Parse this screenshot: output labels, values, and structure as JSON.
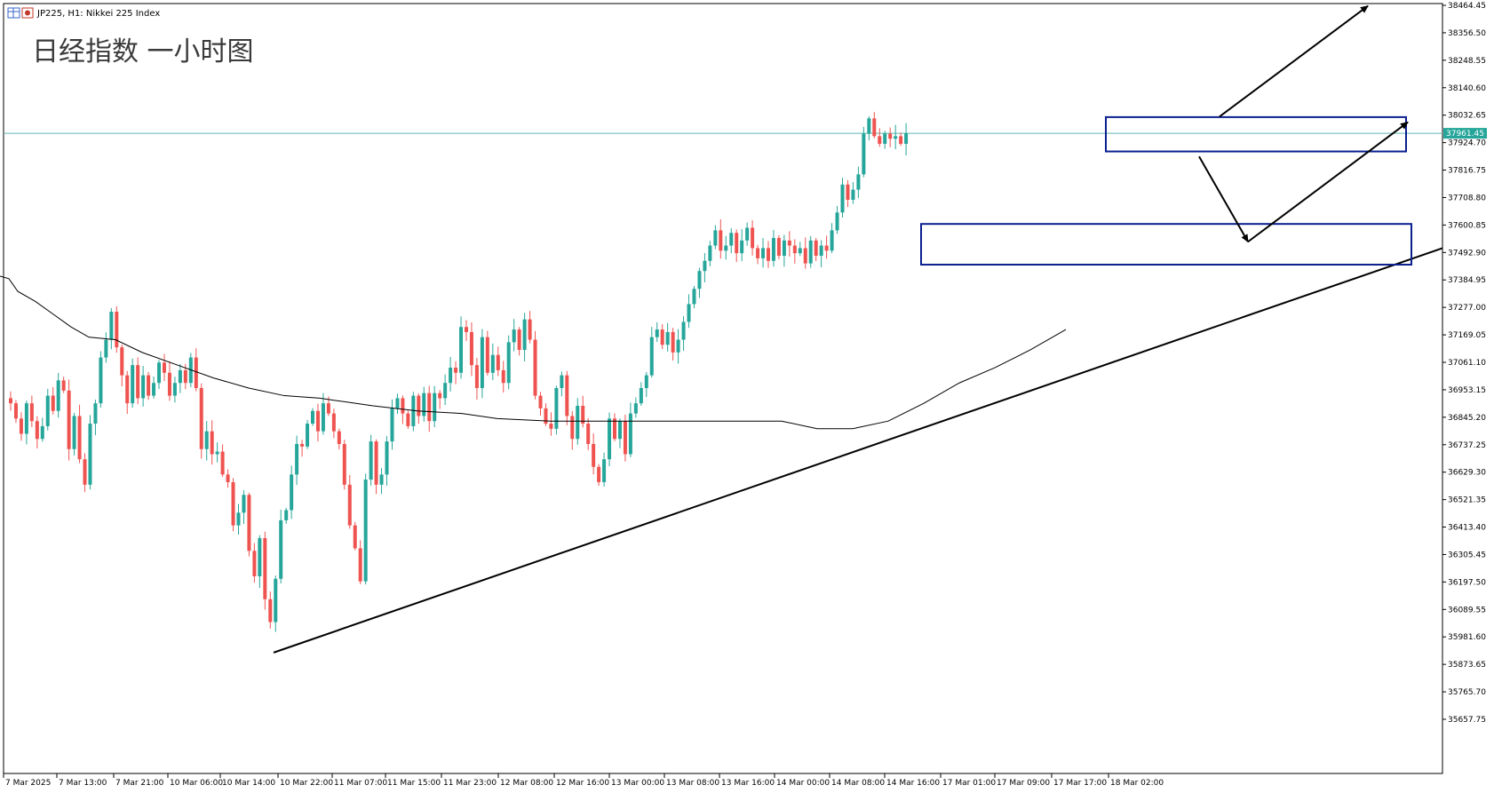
{
  "header": {
    "symbol_text": "JP225, H1:  Nikkei 225 Index"
  },
  "chart_data": {
    "type": "candlestick",
    "title": "日经指数 一小时图",
    "y_ticks": [
      "38464.45",
      "38356.50",
      "38248.55",
      "38140.60",
      "38032.65",
      "37924.70",
      "37816.75",
      "37708.80",
      "37600.85",
      "37492.90",
      "37384.95",
      "37277.00",
      "37169.05",
      "37061.10",
      "36953.15",
      "36845.20",
      "36737.25",
      "36629.30",
      "36521.35",
      "36413.40",
      "36305.45",
      "36197.50",
      "36089.55",
      "35981.60",
      "35873.65",
      "35765.70",
      "35657.75"
    ],
    "ylim": [
      35565,
      38470
    ],
    "x_ticks": [
      "7 Mar 2025",
      "7 Mar 13:00",
      "7 Mar 21:00",
      "10 Mar 06:00",
      "10 Mar 14:00",
      "10 Mar 22:00",
      "11 Mar 07:00",
      "11 Mar 15:00",
      "11 Mar 23:00",
      "12 Mar 08:00",
      "12 Mar 16:00",
      "13 Mar 00:00",
      "13 Mar 08:00",
      "13 Mar 16:00",
      "14 Mar 00:00",
      "14 Mar 08:00",
      "14 Mar 16:00",
      "17 Mar 01:00",
      "17 Mar 09:00",
      "17 Mar 17:00",
      "18 Mar 02:00"
    ],
    "current_price": "37961.45",
    "colors": {
      "up": "#26a69a",
      "down": "#ef5350",
      "ma": "#000000",
      "box": "#0a1f8f",
      "price_line": "#5fb8b0"
    },
    "closes": [
      36900,
      36840,
      36780,
      36900,
      36830,
      36760,
      36810,
      36930,
      36870,
      36990,
      36950,
      36720,
      36850,
      36680,
      36580,
      36820,
      36900,
      37080,
      37150,
      37260,
      37120,
      37010,
      36900,
      37050,
      36920,
      37010,
      36930,
      36980,
      37060,
      37020,
      36930,
      36980,
      37030,
      36980,
      37080,
      36960,
      36720,
      36790,
      36700,
      36710,
      36620,
      36590,
      36420,
      36470,
      36540,
      36320,
      36220,
      36370,
      36130,
      36040,
      36210,
      36440,
      36480,
      36620,
      36740,
      36730,
      36820,
      36870,
      36790,
      36900,
      36860,
      36790,
      36740,
      36580,
      36420,
      36330,
      36200,
      36600,
      36750,
      36580,
      36620,
      36750,
      36880,
      36920,
      36860,
      36810,
      36930,
      36850,
      36940,
      36830,
      36940,
      36920,
      36980,
      37040,
      37020,
      37200,
      37180,
      37050,
      36960,
      37160,
      37020,
      37090,
      37030,
      36980,
      37140,
      37190,
      37110,
      37230,
      37150,
      36930,
      36880,
      36820,
      36800,
      36960,
      37010,
      36850,
      36760,
      36890,
      36820,
      36740,
      36650,
      36590,
      36680,
      36840,
      36760,
      36830,
      36700,
      36860,
      36900,
      36960,
      37010,
      37160,
      37190,
      37130,
      37180,
      37100,
      37150,
      37220,
      37290,
      37350,
      37420,
      37460,
      37520,
      37580,
      37500,
      37520,
      37570,
      37490,
      37540,
      37590,
      37510,
      37470,
      37510,
      37460,
      37550,
      37480,
      37540,
      37520,
      37490,
      37510,
      37450,
      37540,
      37480,
      37520,
      37500,
      37580,
      37650,
      37760,
      37700,
      37740,
      37800,
      37960,
      38020,
      37950,
      37920,
      37960,
      37940,
      37950,
      37920,
      37961.45
    ],
    "ma_points": [
      [
        0,
        37400
      ],
      [
        10,
        37390
      ],
      [
        20,
        37340
      ],
      [
        40,
        37300
      ],
      [
        60,
        37250
      ],
      [
        80,
        37200
      ],
      [
        100,
        37160
      ],
      [
        130,
        37150
      ],
      [
        160,
        37100
      ],
      [
        200,
        37050
      ],
      [
        240,
        37000
      ],
      [
        280,
        36960
      ],
      [
        320,
        36930
      ],
      [
        360,
        36920
      ],
      [
        420,
        36890
      ],
      [
        470,
        36870
      ],
      [
        520,
        36860
      ],
      [
        560,
        36840
      ],
      [
        620,
        36830
      ],
      [
        680,
        36830
      ],
      [
        720,
        36830
      ],
      [
        780,
        36830
      ],
      [
        840,
        36830
      ],
      [
        880,
        36830
      ],
      [
        920,
        36800
      ],
      [
        960,
        36800
      ],
      [
        1000,
        36830
      ],
      [
        1040,
        36900
      ],
      [
        1080,
        36980
      ],
      [
        1120,
        37040
      ],
      [
        1160,
        37110
      ],
      [
        1200,
        37190
      ]
    ],
    "trendline": {
      "from": [
        "10 Mar 22:00",
        35920
      ],
      "to": [
        "18 Mar 08:00",
        37510
      ]
    },
    "boxes": [
      {
        "from": "14 Mar 16:00",
        "to": "18 Mar 13:00",
        "low": 37445,
        "high": 37605
      },
      {
        "from": "17 Mar 17:00",
        "to": "18 Mar 13:00",
        "low": 37890,
        "high": 38025
      }
    ],
    "arrows": [
      {
        "from": [
          "18 Mar 04:00",
          38027
        ],
        "to": [
          "18 Mar 10:00",
          38462
        ]
      },
      {
        "from": [
          "18 Mar 03:00",
          37870
        ],
        "to": [
          "18 Mar 05:00",
          37535
        ]
      },
      {
        "from": [
          "18 Mar 05:00",
          37535
        ],
        "to": [
          "18 Mar 13:00",
          38005
        ]
      }
    ]
  }
}
